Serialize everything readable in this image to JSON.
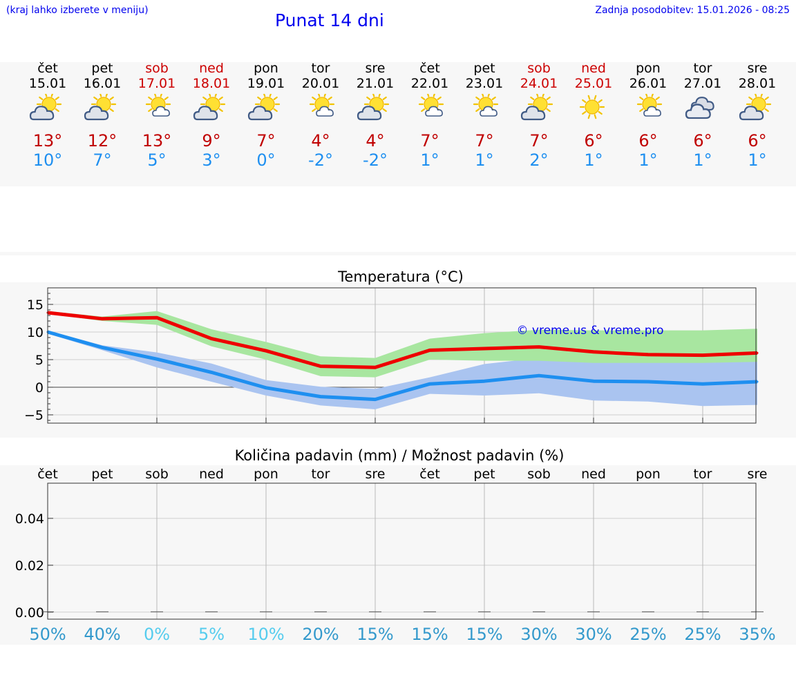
{
  "header": {
    "hint": "(kraj lahko izberete v meniju)",
    "title": "Punat 14 dni",
    "updated": "Zadnja posodobitev: 15.01.2026 - 08:25"
  },
  "days": [
    {
      "name": "čet",
      "date": "15.01",
      "icon": "sun-cloud-icon",
      "tmax": "13°",
      "tmin": "10°",
      "weekend": false
    },
    {
      "name": "pet",
      "date": "16.01",
      "icon": "sun-cloud-icon",
      "tmax": "12°",
      "tmin": "7°",
      "weekend": false
    },
    {
      "name": "sob",
      "date": "17.01",
      "icon": "sun-small-cloud-icon",
      "tmax": "13°",
      "tmin": "5°",
      "weekend": true
    },
    {
      "name": "ned",
      "date": "18.01",
      "icon": "sun-cloud-icon",
      "tmax": "9°",
      "tmin": "3°",
      "weekend": true
    },
    {
      "name": "pon",
      "date": "19.01",
      "icon": "sun-cloud-icon",
      "tmax": "7°",
      "tmin": "0°",
      "weekend": false
    },
    {
      "name": "tor",
      "date": "20.01",
      "icon": "sun-small-cloud-icon",
      "tmax": "4°",
      "tmin": "-2°",
      "weekend": false
    },
    {
      "name": "sre",
      "date": "21.01",
      "icon": "sun-cloud-icon",
      "tmax": "4°",
      "tmin": "-2°",
      "weekend": false
    },
    {
      "name": "čet",
      "date": "22.01",
      "icon": "sun-small-cloud-icon",
      "tmax": "7°",
      "tmin": "1°",
      "weekend": false
    },
    {
      "name": "pet",
      "date": "23.01",
      "icon": "sun-small-cloud-icon",
      "tmax": "7°",
      "tmin": "1°",
      "weekend": false
    },
    {
      "name": "sob",
      "date": "24.01",
      "icon": "sun-cloud-icon",
      "tmax": "7°",
      "tmin": "2°",
      "weekend": true
    },
    {
      "name": "ned",
      "date": "25.01",
      "icon": "sun-icon",
      "tmax": "6°",
      "tmin": "1°",
      "weekend": true
    },
    {
      "name": "pon",
      "date": "26.01",
      "icon": "sun-small-cloud-icon",
      "tmax": "6°",
      "tmin": "1°",
      "weekend": false
    },
    {
      "name": "tor",
      "date": "27.01",
      "icon": "cloud-icon",
      "tmax": "6°",
      "tmin": "1°",
      "weekend": false
    },
    {
      "name": "sre",
      "date": "28.01",
      "icon": "sun-cloud-icon",
      "tmax": "6°",
      "tmin": "1°",
      "weekend": false
    }
  ],
  "colors": {
    "max_line": "#ee0000",
    "max_band": "#a8e6a0",
    "min_line": "#1e8ff0",
    "min_band": "#aac4f0",
    "overlap_band": "#78c2a8",
    "link": "#0000ee",
    "prob_dark": "#3399cc",
    "prob_light": "#55ccee"
  },
  "chart_data": [
    {
      "type": "line",
      "title": "Temperatura (°C)",
      "watermark": "© vreme.us & vreme.pro",
      "x": [
        0,
        1,
        2,
        3,
        4,
        5,
        6,
        7,
        8,
        9,
        10,
        11,
        12,
        13
      ],
      "ylim": [
        -6.5,
        18
      ],
      "yticks": [
        15,
        10,
        5,
        0,
        -5
      ],
      "ytick_labels": [
        "15",
        "10",
        "5",
        "0",
        "−5"
      ],
      "grid": true,
      "series": [
        {
          "name": "max",
          "values": [
            13.5,
            12.4,
            12.6,
            8.8,
            6.6,
            3.8,
            3.6,
            6.7,
            7.0,
            7.3,
            6.4,
            5.9,
            5.8,
            6.2
          ],
          "band_low": [
            13.3,
            12.0,
            11.3,
            7.4,
            5.0,
            2.0,
            1.8,
            5.0,
            4.8,
            4.8,
            4.4,
            4.4,
            4.4,
            4.6
          ],
          "band_high": [
            13.8,
            12.8,
            13.8,
            10.5,
            8.2,
            5.6,
            5.3,
            8.8,
            9.8,
            10.4,
            10.3,
            10.3,
            10.3,
            10.6
          ]
        },
        {
          "name": "min",
          "values": [
            10.0,
            7.2,
            5.1,
            2.7,
            -0.1,
            -1.7,
            -2.2,
            0.6,
            1.1,
            2.1,
            1.1,
            1.0,
            0.6,
            1.0
          ],
          "band_low": [
            9.7,
            6.7,
            3.6,
            1.0,
            -1.5,
            -3.3,
            -4.0,
            -1.2,
            -1.5,
            -1.1,
            -2.4,
            -2.6,
            -3.4,
            -3.2
          ],
          "band_high": [
            10.2,
            7.6,
            6.3,
            4.3,
            1.3,
            0.1,
            -0.3,
            1.8,
            4.2,
            5.3,
            4.8,
            5.0,
            5.2,
            5.6
          ]
        }
      ]
    },
    {
      "type": "bar",
      "title": "Količina padavin (mm) / Možnost padavin (%)",
      "categories": [
        "čet",
        "pet",
        "sob",
        "ned",
        "pon",
        "tor",
        "sre",
        "čet",
        "pet",
        "sob",
        "ned",
        "pon",
        "tor",
        "sre"
      ],
      "values": [
        0,
        0,
        0,
        0,
        0,
        0,
        0,
        0,
        0,
        0,
        0,
        0,
        0,
        0
      ],
      "ylim": [
        -0.003,
        0.055
      ],
      "yticks": [
        0.04,
        0.02,
        0.0
      ],
      "ytick_labels": [
        "0.04",
        "0.02",
        "0.00"
      ],
      "probability_labels": [
        "50%",
        "40%",
        "0%",
        "5%",
        "10%",
        "20%",
        "15%",
        "15%",
        "15%",
        "30%",
        "30%",
        "25%",
        "25%",
        "35%"
      ],
      "probability_values": [
        50,
        40,
        0,
        5,
        10,
        20,
        15,
        15,
        15,
        30,
        30,
        25,
        25,
        35
      ],
      "grid": true
    }
  ]
}
